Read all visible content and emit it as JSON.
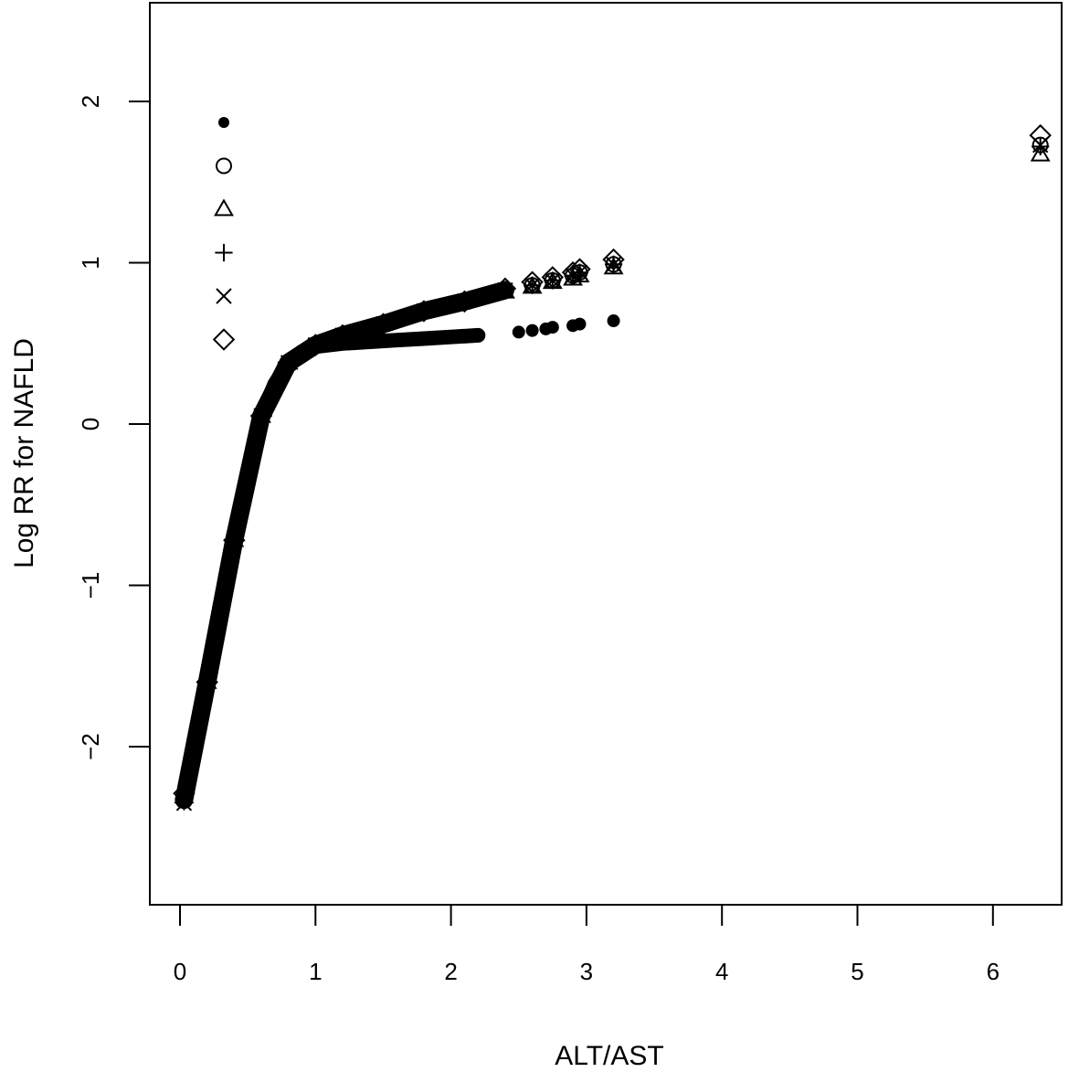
{
  "chart_data": {
    "type": "scatter",
    "title": "",
    "xlabel": "ALT/AST",
    "ylabel": "Log RR for NAFLD",
    "xlim": [
      -0.22,
      6.5
    ],
    "ylim": [
      -2.98,
      2.6
    ],
    "xticks": [
      0,
      1,
      2,
      3,
      4,
      5,
      6
    ],
    "yticks": [
      -2,
      -1,
      0,
      1,
      2
    ],
    "grid": false,
    "legend": {
      "position": "top-left",
      "entries": [
        {
          "marker": "filled-circle",
          "label": ""
        },
        {
          "marker": "open-circle",
          "label": ""
        },
        {
          "marker": "open-triangle",
          "label": ""
        },
        {
          "marker": "plus",
          "label": ""
        },
        {
          "marker": "cross",
          "label": ""
        },
        {
          "marker": "open-diamond",
          "label": ""
        }
      ]
    },
    "series": [
      {
        "name": "filled-circle",
        "marker": "filled-circle",
        "x": [
          0.03,
          0.1,
          0.2,
          0.3,
          0.4,
          0.5,
          0.6,
          0.7,
          0.8,
          0.9,
          1.0,
          1.1,
          1.2,
          1.4,
          1.6,
          1.8,
          2.0,
          2.2,
          2.5,
          2.6,
          2.7,
          2.75,
          2.9,
          2.95,
          3.2
        ],
        "y": [
          -2.33,
          -2.05,
          -1.6,
          -1.15,
          -0.72,
          -0.3,
          0.05,
          0.25,
          0.38,
          0.45,
          0.48,
          0.49,
          0.5,
          0.51,
          0.52,
          0.53,
          0.54,
          0.55,
          0.57,
          0.58,
          0.59,
          0.6,
          0.61,
          0.62,
          0.64
        ]
      },
      {
        "name": "open-circle",
        "marker": "open-circle",
        "x": [
          0.03,
          0.2,
          0.4,
          0.6,
          0.8,
          1.0,
          1.2,
          1.5,
          1.8,
          2.1,
          2.4,
          2.6,
          2.75,
          2.9,
          2.95,
          3.2,
          6.35
        ],
        "y": [
          -2.33,
          -1.6,
          -0.72,
          0.05,
          0.38,
          0.49,
          0.55,
          0.62,
          0.7,
          0.76,
          0.83,
          0.86,
          0.89,
          0.92,
          0.94,
          0.99,
          1.73
        ]
      },
      {
        "name": "open-triangle",
        "marker": "open-triangle",
        "x": [
          0.03,
          0.2,
          0.4,
          0.6,
          0.8,
          1.0,
          1.2,
          1.5,
          1.8,
          2.1,
          2.4,
          2.6,
          2.75,
          2.9,
          2.95,
          3.2,
          6.35
        ],
        "y": [
          -2.31,
          -1.6,
          -0.72,
          0.05,
          0.38,
          0.49,
          0.55,
          0.62,
          0.7,
          0.76,
          0.82,
          0.85,
          0.88,
          0.9,
          0.92,
          0.97,
          1.67
        ]
      },
      {
        "name": "plus",
        "marker": "plus",
        "x": [
          0.03,
          0.2,
          0.4,
          0.6,
          0.8,
          1.0,
          1.2,
          1.5,
          1.8,
          2.1,
          2.4,
          2.6,
          2.75,
          2.9,
          2.95,
          3.2,
          6.35
        ],
        "y": [
          -2.34,
          -1.6,
          -0.72,
          0.05,
          0.38,
          0.49,
          0.55,
          0.62,
          0.7,
          0.76,
          0.83,
          0.86,
          0.89,
          0.92,
          0.94,
          0.99,
          1.72
        ]
      },
      {
        "name": "cross",
        "marker": "cross",
        "x": [
          0.03,
          0.2,
          0.4,
          0.6,
          0.8,
          1.0,
          1.2,
          1.5,
          1.8,
          2.1,
          2.4,
          2.6,
          2.75,
          2.9,
          2.95,
          3.2,
          6.35
        ],
        "y": [
          -2.35,
          -1.6,
          -0.72,
          0.05,
          0.38,
          0.49,
          0.55,
          0.62,
          0.7,
          0.76,
          0.83,
          0.86,
          0.89,
          0.92,
          0.94,
          0.99,
          1.73
        ]
      },
      {
        "name": "open-diamond",
        "marker": "open-diamond",
        "x": [
          0.03,
          0.2,
          0.4,
          0.6,
          0.8,
          1.0,
          1.2,
          1.5,
          1.8,
          2.1,
          2.4,
          2.6,
          2.75,
          2.9,
          2.95,
          3.2,
          6.35
        ],
        "y": [
          -2.29,
          -1.6,
          -0.72,
          0.05,
          0.38,
          0.49,
          0.55,
          0.62,
          0.7,
          0.76,
          0.84,
          0.88,
          0.91,
          0.94,
          0.96,
          1.02,
          1.79
        ]
      }
    ]
  }
}
